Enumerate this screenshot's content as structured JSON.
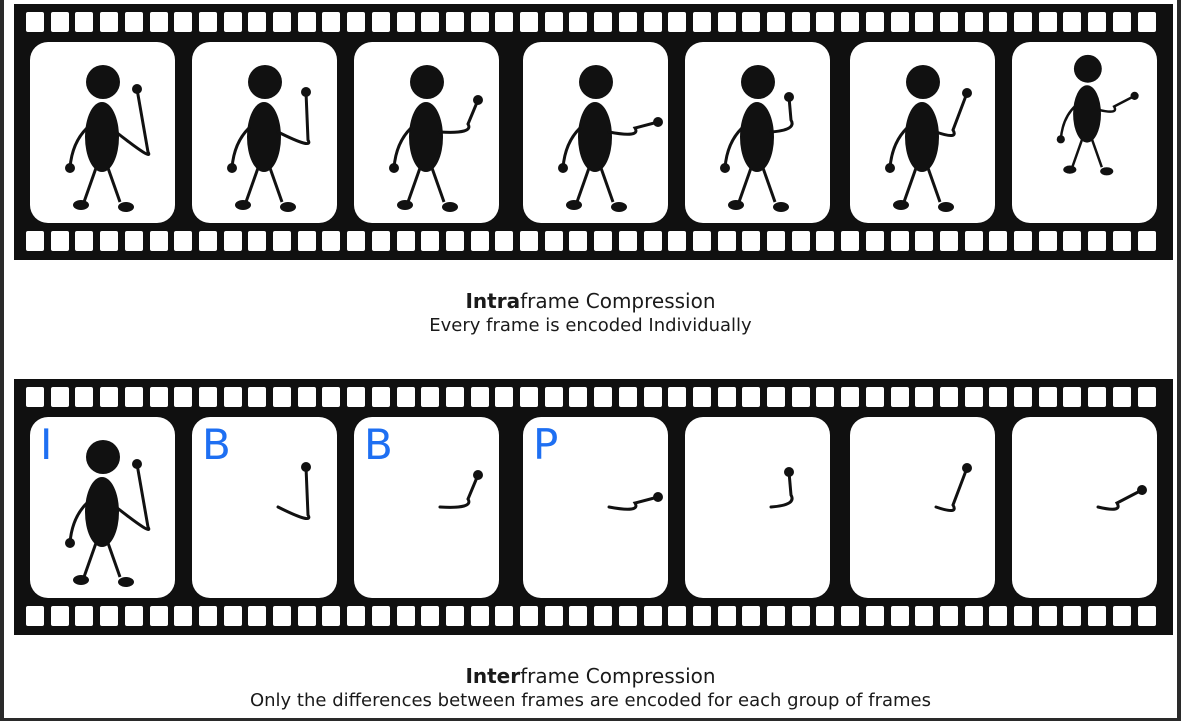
{
  "captions": {
    "intra": {
      "title_bold": "Intra",
      "title_rest": "frame Compression",
      "subtitle": "Every frame is encoded Individually"
    },
    "inter": {
      "title_bold": "Inter",
      "title_rest": "frame Compression",
      "subtitle": "Only the differences between frames are encoded for each group of frames"
    }
  },
  "frame_labels": [
    "I",
    "B",
    "B",
    "P",
    "",
    "",
    ""
  ],
  "colors": {
    "film": "#101010",
    "frame": "#ffffff",
    "figure": "#111111",
    "label": "#1e6ff2"
  }
}
